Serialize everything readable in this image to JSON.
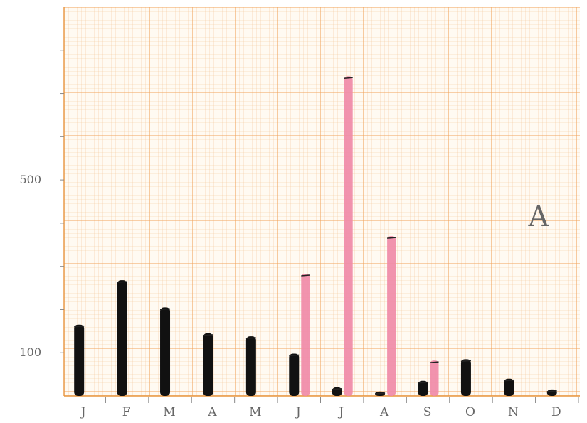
{
  "chart_data": {
    "type": "bar",
    "title": "",
    "xlabel": "",
    "ylabel": "",
    "panel_label": "A",
    "categories": [
      "J",
      "F",
      "M",
      "A",
      "M",
      "J",
      "J",
      "A",
      "S",
      "O",
      "N",
      "D"
    ],
    "y_tick_labels": [
      {
        "value": 100,
        "label": "100"
      },
      {
        "value": 500,
        "label": "500"
      }
    ],
    "ylim": [
      0,
      900
    ],
    "grid": true,
    "series": [
      {
        "name": "",
        "color": "#111111",
        "values": [
          165,
          268,
          205,
          145,
          138,
          98,
          20,
          10,
          35,
          85,
          40,
          15
        ]
      },
      {
        "name": "",
        "color": "#f08aa8",
        "values": [
          0,
          0,
          0,
          0,
          0,
          283,
          740,
          0,
          0,
          0,
          0,
          0
        ]
      },
      {
        "name": "",
        "color": "#f08aa8",
        "values": [
          0,
          0,
          0,
          0,
          0,
          0,
          0,
          370,
          82,
          0,
          0,
          0
        ]
      }
    ]
  }
}
